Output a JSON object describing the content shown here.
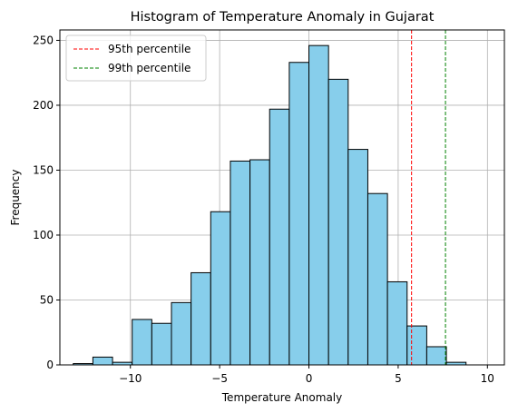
{
  "chart_data": {
    "type": "bar",
    "title": "Histogram of Temperature Anomaly in Gujarat",
    "xlabel": "Temperature Anomaly",
    "ylabel": "Frequency",
    "xlim": [
      -13.95,
      10.95
    ],
    "ylim": [
      0,
      258
    ],
    "xticks": [
      -10,
      -5,
      0,
      5,
      10
    ],
    "yticks": [
      0,
      50,
      100,
      150,
      200,
      250
    ],
    "grid": true,
    "bins": [
      {
        "left": -13.2,
        "right": -12.1,
        "count": 1
      },
      {
        "left": -12.1,
        "right": -11.0,
        "count": 6
      },
      {
        "left": -11.0,
        "right": -9.9,
        "count": 2
      },
      {
        "left": -9.9,
        "right": -8.8,
        "count": 35
      },
      {
        "left": -8.8,
        "right": -7.7,
        "count": 32
      },
      {
        "left": -7.7,
        "right": -6.6,
        "count": 48
      },
      {
        "left": -6.6,
        "right": -5.5,
        "count": 71
      },
      {
        "left": -5.5,
        "right": -4.4,
        "count": 118
      },
      {
        "left": -4.4,
        "right": -3.3,
        "count": 157
      },
      {
        "left": -3.3,
        "right": -2.2,
        "count": 158
      },
      {
        "left": -2.2,
        "right": -1.1,
        "count": 197
      },
      {
        "left": -1.1,
        "right": 0.0,
        "count": 233
      },
      {
        "left": 0.0,
        "right": 1.1,
        "count": 246
      },
      {
        "left": 1.1,
        "right": 2.2,
        "count": 220
      },
      {
        "left": 2.2,
        "right": 3.3,
        "count": 166
      },
      {
        "left": 3.3,
        "right": 4.4,
        "count": 132
      },
      {
        "left": 4.4,
        "right": 5.5,
        "count": 64
      },
      {
        "left": 5.5,
        "right": 6.6,
        "count": 30
      },
      {
        "left": 6.6,
        "right": 7.7,
        "count": 14
      },
      {
        "left": 7.7,
        "right": 8.8,
        "count": 2
      }
    ],
    "bar_color": "#87ceeb",
    "bar_edge_color": "#000000",
    "vlines": [
      {
        "name": "95th percentile",
        "x": 5.75,
        "color": "#ff0000",
        "style": "dashed"
      },
      {
        "name": "99th percentile",
        "x": 7.65,
        "color": "#008000",
        "style": "dashed"
      }
    ],
    "legend_position": "upper-left"
  }
}
